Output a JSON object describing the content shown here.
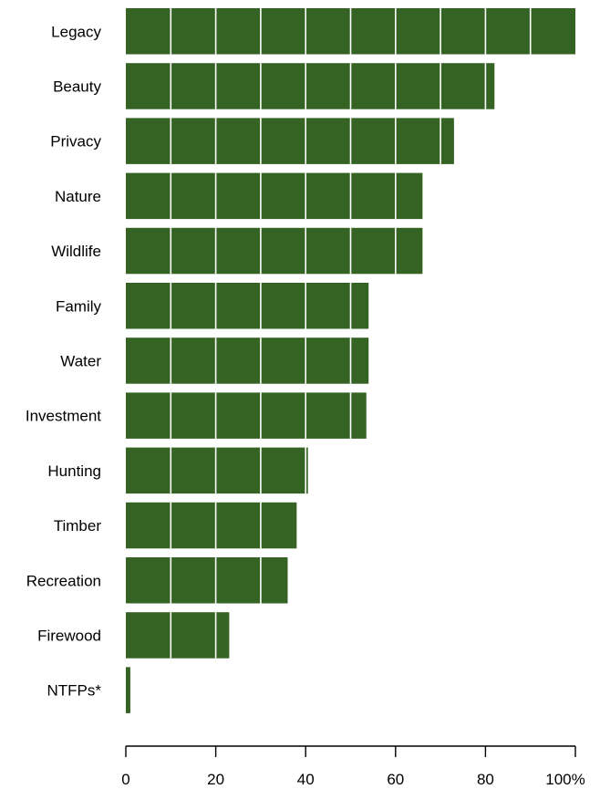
{
  "chart_data": {
    "type": "bar",
    "orientation": "horizontal",
    "categories": [
      "Legacy",
      "Beauty",
      "Privacy",
      "Nature",
      "Wildlife",
      "Family",
      "Water",
      "Investment",
      "Hunting",
      "Timber",
      "Recreation",
      "Firewood",
      "NTFPs*"
    ],
    "values": [
      100,
      82,
      73,
      66,
      66,
      54,
      54,
      53.5,
      40.5,
      38,
      36,
      23,
      1
    ],
    "title": "",
    "xlabel": "",
    "ylabel": "",
    "xlim": [
      0,
      100
    ],
    "x_ticks": [
      0,
      20,
      40,
      60,
      80,
      100
    ],
    "x_tick_labels": [
      "0",
      "20",
      "40",
      "60",
      "80",
      "100%"
    ],
    "grid": true,
    "grid_step": 10,
    "grid_color": "#ffffff",
    "bar_color": "#356324"
  }
}
